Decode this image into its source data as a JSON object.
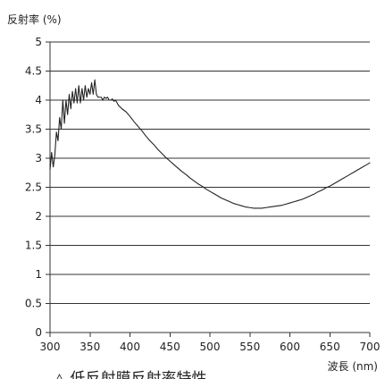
{
  "chart_data": {
    "type": "line",
    "title": "",
    "ylabel": "反射率 (%)",
    "xlabel": "波長 (nm)",
    "caption": "△ 低反射膜反射率特性",
    "xlim": [
      300,
      700
    ],
    "ylim": [
      0,
      5
    ],
    "x_ticks": [
      300,
      350,
      400,
      450,
      500,
      550,
      600,
      650,
      700
    ],
    "y_ticks": [
      0,
      0.5,
      1,
      1.5,
      2,
      2.5,
      3,
      3.5,
      4,
      4.5,
      5
    ],
    "x_tick_labels": [
      "300",
      "350",
      "400",
      "450",
      "500",
      "550",
      "600",
      "650",
      "700"
    ],
    "y_tick_labels": [
      "0",
      "0.5",
      "1",
      "1.5",
      "2",
      "2.5",
      "3",
      "3.5",
      "4",
      "4.5",
      "5"
    ],
    "grid": {
      "horizontal": true,
      "vertical": false
    },
    "series": [
      {
        "color": "#222222",
        "x": [
          300,
          302,
          304,
          306,
          308,
          310,
          312,
          314,
          316,
          318,
          320,
          322,
          324,
          326,
          328,
          330,
          332,
          334,
          336,
          338,
          340,
          342,
          344,
          346,
          348,
          350,
          352,
          354,
          356,
          358,
          360,
          362,
          364,
          366,
          368,
          370,
          372,
          374,
          376,
          378,
          380,
          382,
          384,
          386,
          388,
          390,
          395,
          400,
          405,
          410,
          415,
          420,
          425,
          430,
          435,
          440,
          445,
          450,
          455,
          460,
          465,
          470,
          475,
          480,
          485,
          490,
          495,
          500,
          505,
          510,
          515,
          520,
          525,
          530,
          535,
          540,
          545,
          550,
          555,
          560,
          565,
          570,
          575,
          580,
          585,
          590,
          595,
          600,
          605,
          610,
          615,
          620,
          625,
          630,
          635,
          640,
          645,
          650,
          655,
          660,
          665,
          670,
          675,
          680,
          685,
          690,
          695,
          700
        ],
        "values": [
          2.8,
          3.1,
          2.85,
          3.05,
          3.45,
          3.3,
          3.7,
          3.5,
          4.0,
          3.6,
          4.0,
          3.75,
          4.1,
          3.85,
          4.15,
          3.95,
          4.2,
          3.95,
          4.25,
          3.95,
          4.2,
          4.0,
          4.25,
          4.05,
          4.2,
          4.1,
          4.3,
          4.1,
          4.35,
          4.1,
          4.05,
          4.05,
          4.05,
          4.0,
          4.05,
          4.03,
          4.05,
          4.0,
          4.0,
          4.02,
          3.98,
          4.0,
          3.95,
          3.9,
          3.88,
          3.85,
          3.8,
          3.72,
          3.63,
          3.55,
          3.47,
          3.38,
          3.3,
          3.23,
          3.15,
          3.08,
          3.01,
          2.95,
          2.89,
          2.83,
          2.77,
          2.72,
          2.66,
          2.61,
          2.56,
          2.52,
          2.47,
          2.43,
          2.39,
          2.35,
          2.31,
          2.28,
          2.25,
          2.22,
          2.2,
          2.18,
          2.16,
          2.15,
          2.14,
          2.14,
          2.14,
          2.15,
          2.16,
          2.17,
          2.18,
          2.19,
          2.21,
          2.23,
          2.25,
          2.27,
          2.29,
          2.32,
          2.35,
          2.38,
          2.42,
          2.45,
          2.49,
          2.52,
          2.56,
          2.6,
          2.64,
          2.68,
          2.72,
          2.76,
          2.8,
          2.84,
          2.88,
          2.92
        ]
      }
    ]
  }
}
